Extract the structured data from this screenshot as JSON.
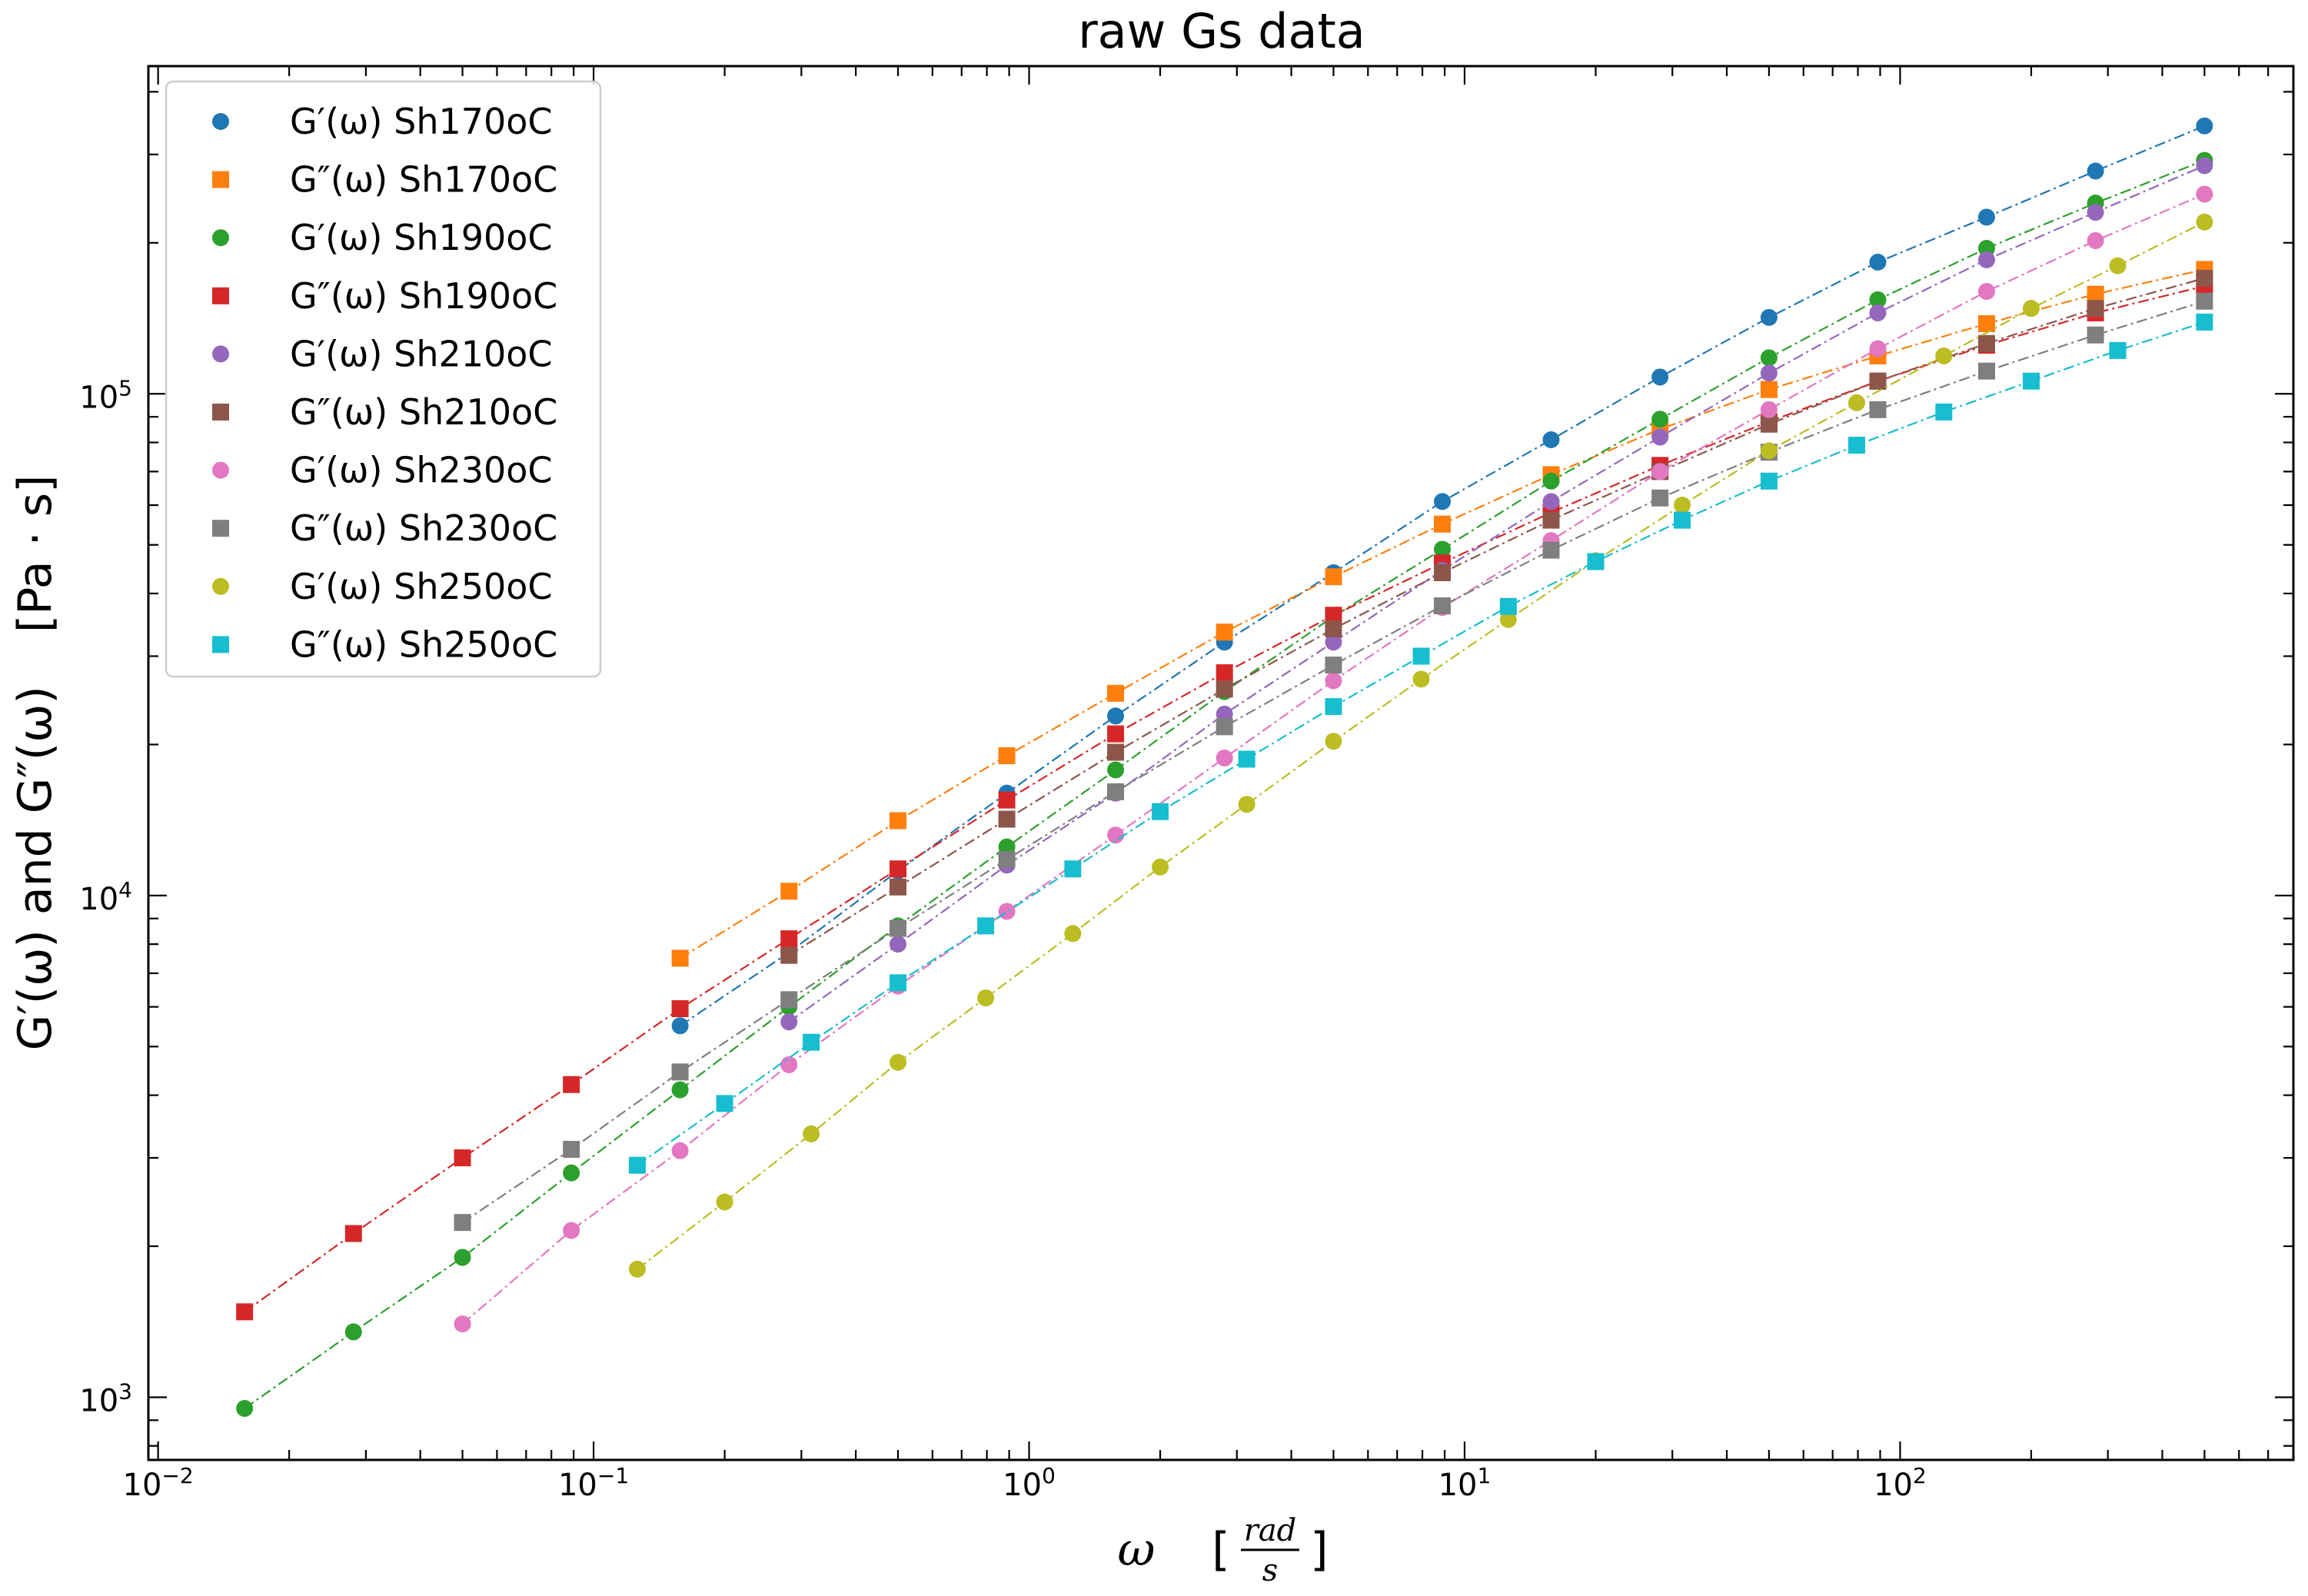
{
  "chart_data": {
    "type": "scatter",
    "title": "raw Gs data",
    "xlabel": {
      "symbol": "ω",
      "unit_num": "rad",
      "unit_den": "s"
    },
    "ylabel": {
      "text_main": "G′(ω) and G″(ω)",
      "unit": "[Pa · s]"
    },
    "x_scale": "log",
    "y_scale": "log",
    "xlim": [
      0.0095,
      800
    ],
    "ylim": [
      750,
      450000
    ],
    "x_ticks": [
      {
        "value": 0.01,
        "base": "10",
        "exp": "−2"
      },
      {
        "value": 0.1,
        "base": "10",
        "exp": "−1"
      },
      {
        "value": 1,
        "base": "10",
        "exp": "0"
      },
      {
        "value": 10,
        "base": "10",
        "exp": "1"
      },
      {
        "value": 100,
        "base": "10",
        "exp": "2"
      }
    ],
    "y_ticks": [
      {
        "value": 1000,
        "base": "10",
        "exp": "3"
      },
      {
        "value": 10000,
        "base": "10",
        "exp": "4"
      },
      {
        "value": 100000,
        "base": "10",
        "exp": "5"
      }
    ],
    "grid": false,
    "legend_position": "top-left",
    "line_style": "dash-dot",
    "series": [
      {
        "name": "G′(ω) Sh170oC",
        "color": "#1f77b4",
        "marker": "circle",
        "x": [
          0.158,
          0.281,
          0.5,
          0.889,
          1.58,
          2.81,
          5.0,
          8.89,
          15.8,
          28.1,
          50.0,
          88.9,
          158,
          281,
          500
        ],
        "y": [
          5500,
          7700,
          11200,
          16000,
          22800,
          32000,
          44000,
          61000,
          81000,
          108000,
          142000,
          183000,
          225000,
          278000,
          342000
        ]
      },
      {
        "name": "G″(ω) Sh170oC",
        "color": "#ff7f0e",
        "marker": "square",
        "x": [
          0.158,
          0.281,
          0.5,
          0.889,
          1.58,
          2.81,
          5.0,
          8.89,
          15.8,
          28.1,
          50.0,
          88.9,
          158,
          281,
          500
        ],
        "y": [
          7500,
          10200,
          14100,
          19000,
          25300,
          33500,
          43200,
          55000,
          69000,
          85000,
          102000,
          119000,
          138000,
          158000,
          177000
        ]
      },
      {
        "name": "G′(ω) Sh190oC",
        "color": "#2ca02c",
        "marker": "circle",
        "x": [
          0.0158,
          0.0281,
          0.05,
          0.0889,
          0.158,
          0.281,
          0.5,
          0.889,
          1.58,
          2.81,
          5.0,
          8.89,
          15.8,
          28.1,
          50.0,
          88.9,
          158,
          281,
          500
        ],
        "y": [
          950,
          1350,
          1900,
          2800,
          4100,
          6000,
          8700,
          12500,
          17800,
          25500,
          36000,
          49000,
          67000,
          89000,
          118000,
          154000,
          195000,
          240000,
          292000
        ]
      },
      {
        "name": "G″(ω) Sh190oC",
        "color": "#d62728",
        "marker": "square",
        "x": [
          0.0158,
          0.0281,
          0.05,
          0.0889,
          0.158,
          0.281,
          0.5,
          0.889,
          1.58,
          2.81,
          5.0,
          8.89,
          15.8,
          28.1,
          50.0,
          88.9,
          158,
          281,
          500
        ],
        "y": [
          1480,
          2120,
          3000,
          4200,
          5950,
          8200,
          11300,
          15500,
          21000,
          27800,
          36200,
          46000,
          58000,
          72000,
          88000,
          106000,
          125000,
          145000,
          164000
        ]
      },
      {
        "name": "G′(ω) Sh210oC",
        "color": "#9467bd",
        "marker": "circle",
        "x": [
          0.281,
          0.5,
          0.889,
          1.58,
          2.81,
          5.0,
          8.89,
          15.8,
          28.1,
          50.0,
          88.9,
          158,
          281,
          500
        ],
        "y": [
          5600,
          8000,
          11500,
          16000,
          23000,
          32000,
          44500,
          61000,
          82000,
          110000,
          145000,
          185000,
          230000,
          285000
        ]
      },
      {
        "name": "G″(ω) Sh210oC",
        "color": "#8c564b",
        "marker": "square",
        "x": [
          0.281,
          0.5,
          0.889,
          1.58,
          2.81,
          5.0,
          8.89,
          15.8,
          28.1,
          50.0,
          88.9,
          158,
          281,
          500
        ],
        "y": [
          7600,
          10400,
          14200,
          19300,
          25800,
          34000,
          44000,
          56000,
          70000,
          87000,
          106000,
          126000,
          148000,
          170000
        ]
      },
      {
        "name": "G′(ω) Sh230oC",
        "color": "#e377c2",
        "marker": "circle",
        "x": [
          0.05,
          0.0889,
          0.158,
          0.281,
          0.5,
          0.889,
          1.58,
          2.81,
          5.0,
          8.89,
          15.8,
          28.1,
          50.0,
          88.9,
          158,
          281,
          500
        ],
        "y": [
          1400,
          2150,
          3100,
          4600,
          6600,
          9300,
          13200,
          18800,
          26800,
          37500,
          51000,
          70000,
          93000,
          123000,
          160000,
          202000,
          250000
        ]
      },
      {
        "name": "G″(ω) Sh230oC",
        "color": "#7f7f7f",
        "marker": "square",
        "x": [
          0.05,
          0.0889,
          0.158,
          0.281,
          0.5,
          0.889,
          1.58,
          2.81,
          5.0,
          8.89,
          15.8,
          28.1,
          50.0,
          88.9,
          158,
          281,
          500
        ],
        "y": [
          2230,
          3120,
          4450,
          6200,
          8600,
          11800,
          16100,
          21700,
          28800,
          37800,
          48800,
          62000,
          76500,
          93000,
          111000,
          131000,
          153000
        ]
      },
      {
        "name": "G′(ω) Sh250oC",
        "color": "#bcbd22",
        "marker": "circle",
        "x": [
          0.126,
          0.2,
          0.316,
          0.5,
          0.795,
          1.26,
          2.0,
          3.16,
          5.0,
          7.95,
          12.6,
          20.0,
          31.6,
          50.0,
          79.5,
          126,
          200,
          316,
          500
        ],
        "y": [
          1800,
          2450,
          3350,
          4650,
          6250,
          8400,
          11400,
          15200,
          20300,
          27000,
          35500,
          46500,
          60000,
          77000,
          96000,
          119000,
          148000,
          180000,
          220000
        ]
      },
      {
        "name": "G″(ω) Sh250oC",
        "color": "#17becf",
        "marker": "square",
        "x": [
          0.126,
          0.2,
          0.316,
          0.5,
          0.795,
          1.26,
          2.0,
          3.16,
          5.0,
          7.95,
          12.6,
          20.0,
          31.6,
          50.0,
          79.5,
          126,
          200,
          316,
          500
        ],
        "y": [
          2900,
          3850,
          5100,
          6700,
          8700,
          11300,
          14700,
          18700,
          23800,
          30000,
          37700,
          46300,
          56000,
          67000,
          79000,
          92000,
          106000,
          122000,
          139000
        ]
      }
    ]
  }
}
